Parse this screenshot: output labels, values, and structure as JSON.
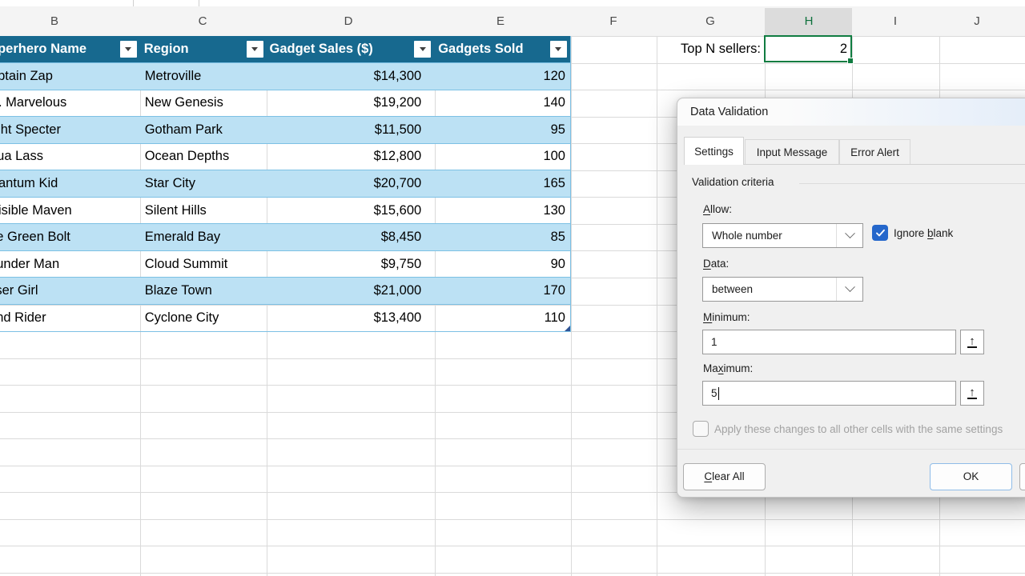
{
  "sheet": {
    "column_headers": [
      "B",
      "C",
      "D",
      "E",
      "F",
      "G",
      "H",
      "I",
      "J"
    ],
    "selected_column": "H",
    "cells": {
      "g1_label": "Top N sellers:",
      "h1_value": "2"
    },
    "table": {
      "headers": [
        "Superhero Name",
        "Region",
        "Gadget Sales ($)",
        "Gadgets Sold"
      ],
      "rows": [
        [
          "Captain Zap",
          "Metroville",
          "$14,300",
          "120"
        ],
        [
          "Ms. Marvelous",
          "New Genesis",
          "$19,200",
          "140"
        ],
        [
          "Night Specter",
          "Gotham Park",
          "$11,500",
          "95"
        ],
        [
          "Aqua Lass",
          "Ocean Depths",
          "$12,800",
          "100"
        ],
        [
          "Quantum Kid",
          "Star City",
          "$20,700",
          "165"
        ],
        [
          "Invisible Maven",
          "Silent Hills",
          "$15,600",
          "130"
        ],
        [
          "The Green Bolt",
          "Emerald Bay",
          "$8,450",
          "85"
        ],
        [
          "Thunder Man",
          "Cloud Summit",
          "$9,750",
          "90"
        ],
        [
          "Laser Girl",
          "Blaze Town",
          "$21,000",
          "170"
        ],
        [
          "Wind Rider",
          "Cyclone City",
          "$13,400",
          "110"
        ]
      ]
    }
  },
  "dialog": {
    "title": "Data Validation",
    "tabs": [
      "Settings",
      "Input Message",
      "Error Alert"
    ],
    "active_tab": "Settings",
    "settings": {
      "group_label": "Validation criteria",
      "allow_label": {
        "pre": "",
        "accel": "A",
        "post": "llow:"
      },
      "allow_value": "Whole number",
      "ignore_blank_label": {
        "pre": "Ignore ",
        "accel": "b",
        "post": "lank"
      },
      "ignore_blank_checked": true,
      "data_label": {
        "pre": "",
        "accel": "D",
        "post": "ata:"
      },
      "data_value": "between",
      "minimum_label": {
        "pre": "",
        "accel": "M",
        "post": "inimum:"
      },
      "minimum_value": "1",
      "maximum_label": {
        "pre": "Ma",
        "accel": "x",
        "post": "imum:"
      },
      "maximum_value": "5",
      "apply_checkbox_label": "Apply these changes to all other cells with the same settings",
      "apply_checkbox_checked": false
    },
    "buttons": {
      "clear_all": {
        "pre": "",
        "accel": "C",
        "post": "lear All"
      },
      "ok": "OK"
    }
  },
  "colors": {
    "table_header_blue": "#17698F",
    "table_band_blue": "#BCE1F4",
    "table_border_blue": "#7CC0E4",
    "selection_green": "#107C41",
    "selected_column_letter_green": "#0E703C",
    "checkbox_blue": "#2567CB",
    "ok_button_border_blue": "#8FBCE8"
  }
}
